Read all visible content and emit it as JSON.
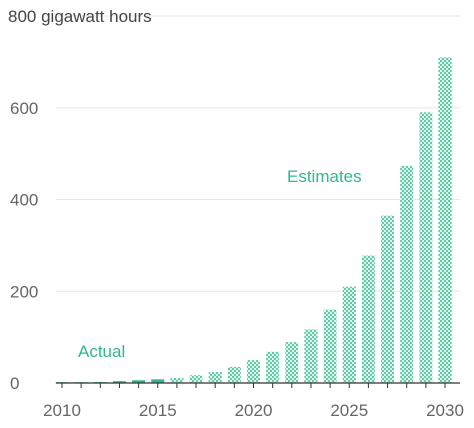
{
  "chart_data": {
    "type": "bar",
    "y_unit_label": "800 gigawatt hours",
    "ylim": [
      0,
      800
    ],
    "yticks": [
      0,
      200,
      400,
      600
    ],
    "xticks": [
      2010,
      2015,
      2020,
      2025,
      2030
    ],
    "grid": true,
    "colors": {
      "actual": "#2fb889",
      "estimate": "#2fb889",
      "annotation": "#2fb889",
      "grid": "#e6e6e6",
      "axis": "#333333",
      "text": "#666666"
    },
    "annotations": {
      "actual": "Actual",
      "estimates": "Estimates"
    },
    "series": [
      {
        "kind": "actual",
        "x": [
          2010,
          2011,
          2012,
          2013,
          2014,
          2015
        ],
        "values": [
          0.5,
          1,
          2,
          4,
          6,
          8
        ]
      },
      {
        "kind": "estimate",
        "x": [
          2016,
          2017,
          2018,
          2019,
          2020,
          2021,
          2022,
          2023,
          2024,
          2025,
          2026,
          2027,
          2028,
          2029,
          2030
        ],
        "values": [
          11,
          17,
          24,
          35,
          50,
          68,
          89,
          117,
          160,
          210,
          278,
          365,
          473,
          590,
          710
        ]
      }
    ]
  }
}
